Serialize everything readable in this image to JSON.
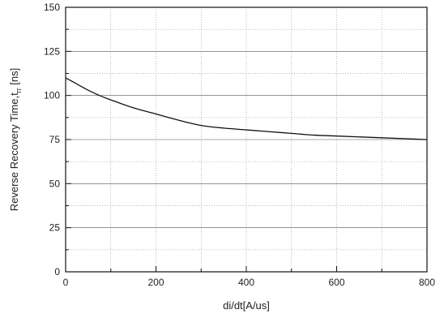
{
  "chart_data": {
    "type": "line",
    "xlabel": "di/dt[A/us]",
    "ylabel": "Reverse Recovery Time,t",
    "ylabel_subscript": "rr",
    "ylabel_unit": " [ns]",
    "xlim": [
      0,
      800
    ],
    "ylim": [
      0,
      150
    ],
    "x_ticks": [
      0,
      200,
      400,
      600,
      800
    ],
    "y_ticks": [
      0,
      25,
      50,
      75,
      100,
      125,
      150
    ],
    "grid": true,
    "series": [
      {
        "x": [
          0,
          25,
          50,
          75,
          100,
          150,
          200,
          250,
          300,
          350,
          400,
          450,
          500,
          550,
          600,
          650,
          700,
          750,
          800
        ],
        "values": [
          110,
          106.5,
          103,
          100,
          97.5,
          93,
          89.5,
          86,
          83,
          81.5,
          80.5,
          79.5,
          78.5,
          77.5,
          77,
          76.5,
          76,
          75.5,
          75
        ]
      }
    ]
  }
}
